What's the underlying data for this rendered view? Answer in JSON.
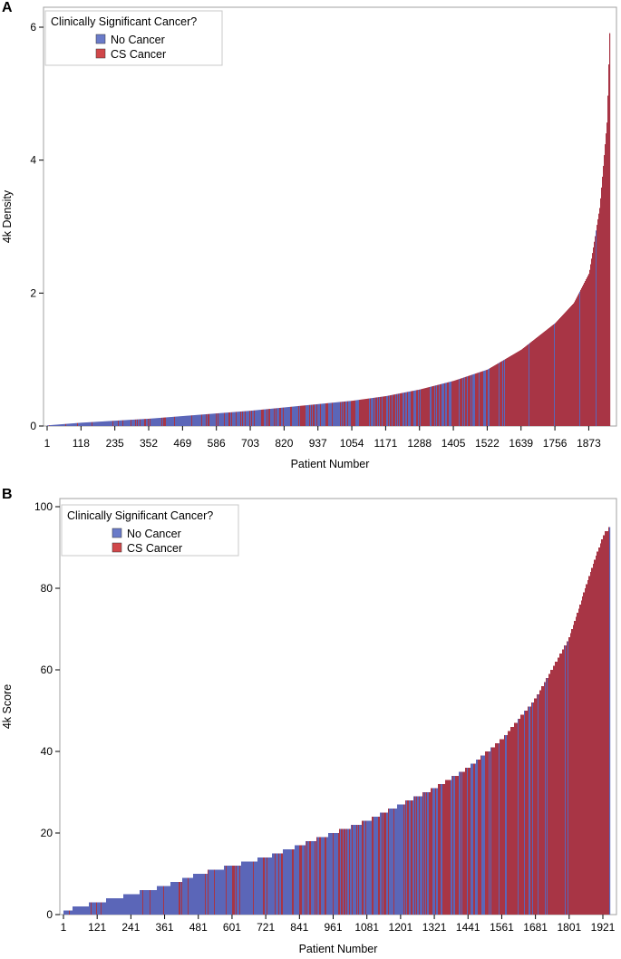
{
  "chart_data": [
    {
      "panel": "A",
      "type": "bar",
      "xlabel": "Patient Number",
      "ylabel": "4k Density",
      "x_range": [
        1,
        1950
      ],
      "ylim": [
        0,
        6.2
      ],
      "y_ticks": [
        0,
        2,
        4,
        6
      ],
      "x_tick_labels": [
        "1",
        "118",
        "235",
        "352",
        "469",
        "586",
        "703",
        "820",
        "937",
        "1054",
        "1171",
        "1288",
        "1405",
        "1522",
        "1639",
        "1756",
        "1873"
      ],
      "legend": {
        "title": "Clinically Significant Cancer?",
        "placement": "top-left",
        "items": [
          {
            "label": "No Cancer",
            "color": "#6a7bc9"
          },
          {
            "label": "CS Cancer",
            "color": "#d0474a"
          }
        ]
      },
      "curve": [
        [
          1,
          0.01
        ],
        [
          118,
          0.05
        ],
        [
          235,
          0.08
        ],
        [
          352,
          0.11
        ],
        [
          469,
          0.15
        ],
        [
          586,
          0.19
        ],
        [
          703,
          0.23
        ],
        [
          820,
          0.28
        ],
        [
          937,
          0.33
        ],
        [
          1054,
          0.38
        ],
        [
          1171,
          0.45
        ],
        [
          1288,
          0.55
        ],
        [
          1405,
          0.68
        ],
        [
          1522,
          0.85
        ],
        [
          1639,
          1.15
        ],
        [
          1756,
          1.55
        ],
        [
          1820,
          1.85
        ],
        [
          1873,
          2.3
        ],
        [
          1910,
          3.3
        ],
        [
          1935,
          4.6
        ],
        [
          1945,
          6.1
        ]
      ],
      "series_colors": {
        "no_cancer": "#5b66b8",
        "cs_cancer": "#a83545"
      }
    },
    {
      "panel": "B",
      "type": "bar",
      "xlabel": "Patient Number",
      "ylabel": "4k Score",
      "x_range": [
        1,
        1950
      ],
      "ylim": [
        0,
        100
      ],
      "y_ticks": [
        0,
        20,
        40,
        60,
        80,
        100
      ],
      "x_tick_labels": [
        "1",
        "121",
        "241",
        "361",
        "481",
        "601",
        "721",
        "841",
        "961",
        "1081",
        "1201",
        "1321",
        "1441",
        "1561",
        "1681",
        "1801",
        "1921"
      ],
      "legend": {
        "title": "Clinically Significant Cancer?",
        "placement": "top-left",
        "items": [
          {
            "label": "No Cancer",
            "color": "#6a7bc9"
          },
          {
            "label": "CS Cancer",
            "color": "#d0474a"
          }
        ]
      },
      "curve": [
        [
          1,
          1
        ],
        [
          121,
          3
        ],
        [
          241,
          5
        ],
        [
          361,
          7
        ],
        [
          481,
          10
        ],
        [
          601,
          12
        ],
        [
          721,
          14
        ],
        [
          841,
          17
        ],
        [
          961,
          20
        ],
        [
          1081,
          23
        ],
        [
          1201,
          27
        ],
        [
          1321,
          31
        ],
        [
          1441,
          36
        ],
        [
          1561,
          43
        ],
        [
          1681,
          53
        ],
        [
          1801,
          68
        ],
        [
          1880,
          85
        ],
        [
          1921,
          93
        ],
        [
          1945,
          95
        ]
      ],
      "series_colors": {
        "no_cancer": "#5b66b8",
        "cs_cancer": "#a83545"
      }
    }
  ]
}
